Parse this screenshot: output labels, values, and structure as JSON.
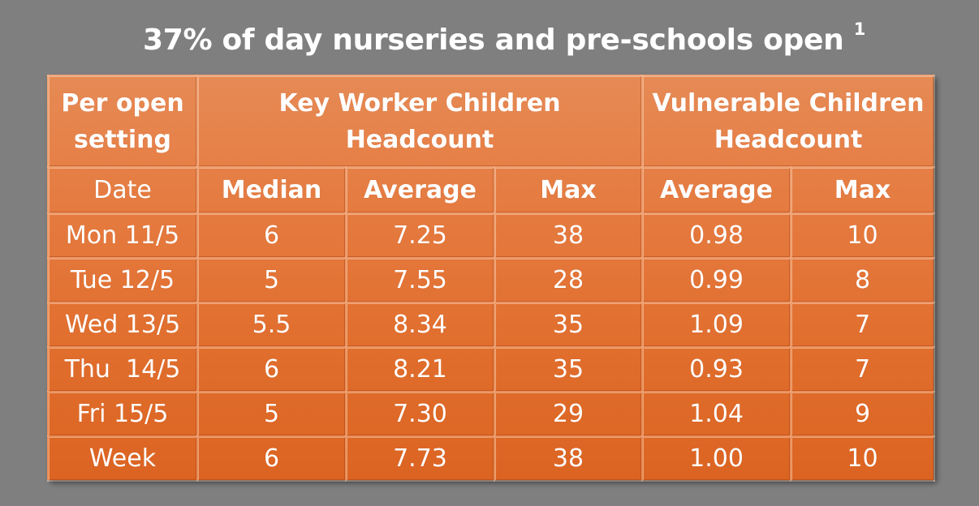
{
  "title": {
    "text": "37% of day nurseries and pre-schools open",
    "footnote": "1"
  },
  "table": {
    "header_per_open_line1": "Per open",
    "header_per_open_line2": "setting",
    "header_key_worker_line1": "Key Worker Children",
    "header_key_worker_line2": "Headcount",
    "header_vulnerable_line1": "Vulnerable Children",
    "header_vulnerable_line2": "Headcount",
    "sub_headers": [
      "Date",
      "Median",
      "Average",
      "Max",
      "Average",
      "Max"
    ],
    "rows": [
      [
        "Mon 11/5",
        "6",
        "7.25",
        "38",
        "0.98",
        "10"
      ],
      [
        "Tue 12/5",
        "5",
        "7.55",
        "28",
        "0.99",
        "8"
      ],
      [
        "Wed 13/5",
        "5.5",
        "8.34",
        "35",
        "1.09",
        "7"
      ],
      [
        "Thu  14/5",
        "6",
        "8.21",
        "35",
        "0.93",
        "7"
      ],
      [
        "Fri 15/5",
        "5",
        "7.30",
        "29",
        "1.04",
        "9"
      ],
      [
        "Week",
        "6",
        "7.73",
        "38",
        "1.00",
        "10"
      ]
    ]
  },
  "colors": {
    "background": "#7f7f7f",
    "table_fill": "#e57a3f",
    "text": "#ffffff"
  }
}
